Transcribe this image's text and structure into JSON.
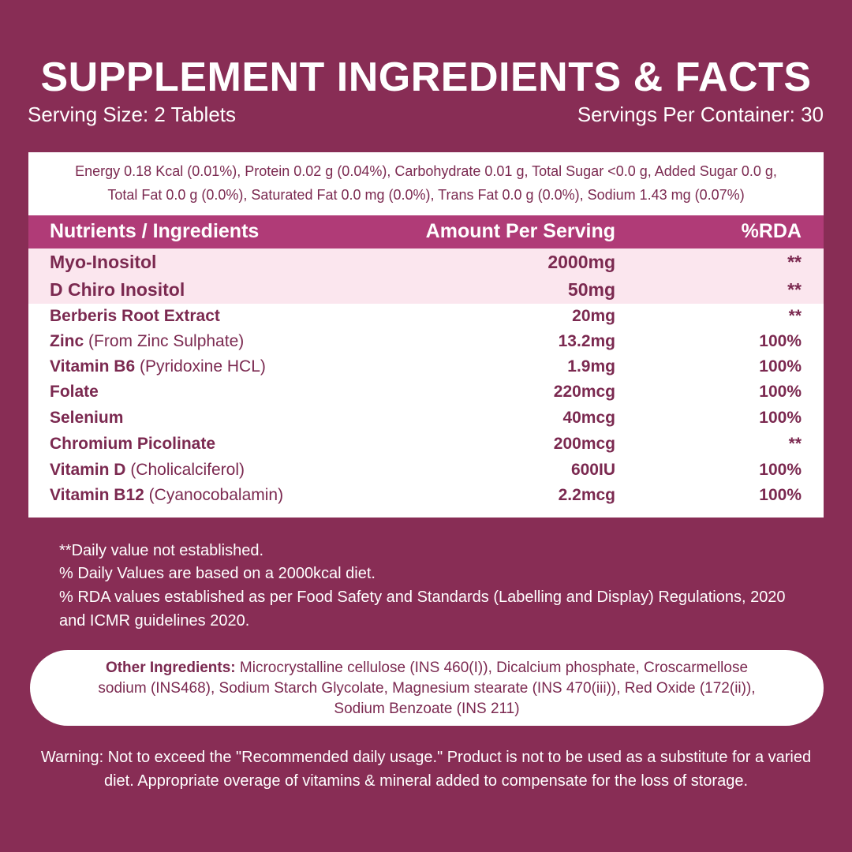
{
  "header": {
    "title": "SUPPLEMENT INGREDIENTS & FACTS",
    "serving_size": "Serving Size: 2 Tablets",
    "servings_per_container": "Servings Per Container: 30"
  },
  "energy": [
    "Energy 0.18 Kcal (0.01%), Protein 0.02 g (0.04%), Carbohydrate 0.01 g, Total Sugar <0.0 g, Added Sugar 0.0 g,",
    "Total Fat 0.0 g (0.0%),  Saturated Fat 0.0 mg (0.0%), Trans Fat 0.0 g (0.0%), Sodium 1.43 mg (0.07%)"
  ],
  "table": {
    "columns": [
      "Nutrients / Ingredients",
      "Amount Per Serving",
      "%RDA"
    ],
    "rows": [
      {
        "name": "Myo-Inositol",
        "amount": "2000mg",
        "rda": "**"
      },
      {
        "name": "D Chiro Inositol",
        "amount": "50mg",
        "rda": "**"
      },
      {
        "name": "Berberis Root Extract",
        "amount": "20mg",
        "rda": "**"
      },
      {
        "name": "Zinc",
        "detail": "(From Zinc Sulphate)",
        "amount": "13.2mg",
        "rda": "100%"
      },
      {
        "name": "Vitamin B6",
        "detail": "(Pyridoxine HCL)",
        "amount": "1.9mg",
        "rda": "100%"
      },
      {
        "name": "Folate",
        "amount": "220mcg",
        "rda": "100%"
      },
      {
        "name": "Selenium",
        "amount": "40mcg",
        "rda": "100%"
      },
      {
        "name": "Chromium Picolinate",
        "amount": "200mcg",
        "rda": "**"
      },
      {
        "name": "Vitamin D",
        "detail": "(Cholicalciferol)",
        "amount": "600IU",
        "rda": "100%"
      },
      {
        "name": "Vitamin B12",
        "detail": "(Cyanocobalamin)",
        "amount": "2.2mcg",
        "rda": "100%"
      }
    ]
  },
  "notes": [
    "**Daily value not established.",
    "% Daily Values are based on a 2000kcal diet.",
    "% RDA values established as per Food Safety and Standards (Labelling and Display) Regulations, 2020 and ICMR guidelines 2020."
  ],
  "other_ingredients": {
    "label": "Other Ingredients:",
    "text": "Microcrystalline cellulose (INS 460(I)), Dicalcium phosphate, Croscarmellose sodium (INS468), Sodium Starch Glycolate, Magnesium stearate (INS 470(iii)), Red Oxide (172(ii)), Sodium Benzoate (INS 211)"
  },
  "warning": "Warning: Not to exceed the \"Recommended daily usage.\" Product is not to be used as a substitute for a varied diet. Appropriate overage of vitamins & mineral added to compensate for the loss of storage."
}
